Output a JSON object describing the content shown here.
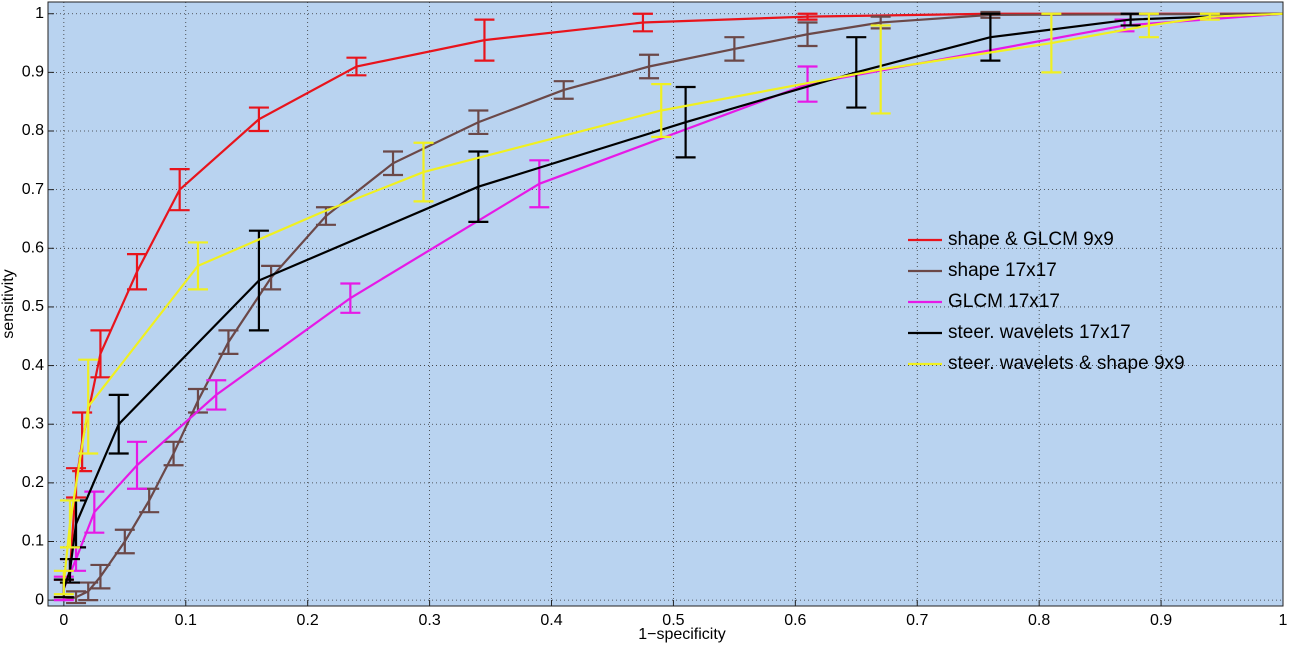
{
  "chart_data": {
    "type": "line",
    "xlabel": "1−specificity",
    "ylabel": "sensitivity",
    "xlim": [
      -0.013,
      1
    ],
    "ylim": [
      -0.01,
      1.02
    ],
    "xticks": [
      0,
      0.1,
      0.2,
      0.3,
      0.4,
      0.5,
      0.6,
      0.7,
      0.8,
      0.9,
      1
    ],
    "yticks": [
      0,
      0.1,
      0.2,
      0.3,
      0.4,
      0.5,
      0.6,
      0.7,
      0.8,
      0.9,
      1
    ],
    "grid": true,
    "legend": "center right",
    "background": "#b9d3f0",
    "series": [
      {
        "name": "shape & GLCM 9x9",
        "color": "#e8141c",
        "x": [
          0,
          0.005,
          0.01,
          0.015,
          0.03,
          0.06,
          0.095,
          0.16,
          0.24,
          0.345,
          0.475,
          0.61,
          0.76,
          1
        ],
        "y": [
          0.02,
          0.05,
          0.2,
          0.27,
          0.42,
          0.56,
          0.7,
          0.82,
          0.91,
          0.955,
          0.985,
          0.995,
          1,
          1
        ],
        "err": [
          0.015,
          0.02,
          0.025,
          0.05,
          0.04,
          0.03,
          0.035,
          0.02,
          0.015,
          0.035,
          0.015,
          0.005,
          null,
          null
        ]
      },
      {
        "name": "shape 17x17",
        "color": "#6b4848",
        "x": [
          0,
          0.01,
          0.02,
          0.03,
          0.05,
          0.07,
          0.09,
          0.11,
          0.135,
          0.17,
          0.215,
          0.27,
          0.34,
          0.41,
          0.48,
          0.55,
          0.61,
          0.67,
          0.76,
          1
        ],
        "y": [
          0,
          0.005,
          0.015,
          0.04,
          0.1,
          0.17,
          0.25,
          0.34,
          0.44,
          0.55,
          0.655,
          0.745,
          0.815,
          0.87,
          0.91,
          0.94,
          0.965,
          0.985,
          0.998,
          1
        ],
        "err": [
          null,
          0.01,
          0.015,
          0.02,
          0.02,
          0.02,
          0.02,
          0.02,
          0.02,
          0.02,
          0.015,
          0.02,
          0.02,
          0.015,
          0.02,
          0.02,
          0.02,
          0.01,
          0.005,
          null
        ]
      },
      {
        "name": "GLCM 17x17",
        "color": "#e619e6",
        "x": [
          0,
          0.01,
          0.025,
          0.06,
          0.125,
          0.235,
          0.39,
          0.61,
          0.87,
          1
        ],
        "y": [
          0.02,
          0.07,
          0.15,
          0.23,
          0.35,
          0.515,
          0.71,
          0.88,
          0.98,
          1
        ],
        "err": [
          0.02,
          0.02,
          0.035,
          0.04,
          0.025,
          0.025,
          0.04,
          0.03,
          0.01,
          null
        ]
      },
      {
        "name": "steer. wavelets 17x17",
        "color": "#000000",
        "x": [
          0,
          0.005,
          0.01,
          0.045,
          0.16,
          0.34,
          0.51,
          0.65,
          0.76,
          0.875,
          1
        ],
        "y": [
          0.02,
          0.05,
          0.13,
          0.3,
          0.545,
          0.705,
          0.815,
          0.9,
          0.96,
          0.99,
          1
        ],
        "err": [
          0.015,
          0.02,
          0.04,
          0.05,
          0.085,
          0.06,
          0.06,
          0.06,
          0.04,
          0.01,
          null
        ]
      },
      {
        "name": "steer. wavelets & shape 9x9",
        "color": "#f0f020",
        "x": [
          0,
          0.005,
          0.02,
          0.11,
          0.21,
          0.295,
          0.49,
          0.67,
          0.81,
          0.89,
          0.94,
          1
        ],
        "y": [
          0.03,
          0.13,
          0.33,
          0.57,
          0.66,
          0.73,
          0.835,
          0.905,
          0.95,
          0.98,
          0.995,
          1
        ],
        "err": [
          0.02,
          0.04,
          0.08,
          0.04,
          null,
          0.05,
          0.045,
          0.075,
          0.05,
          0.02,
          0.005,
          null
        ]
      }
    ]
  }
}
